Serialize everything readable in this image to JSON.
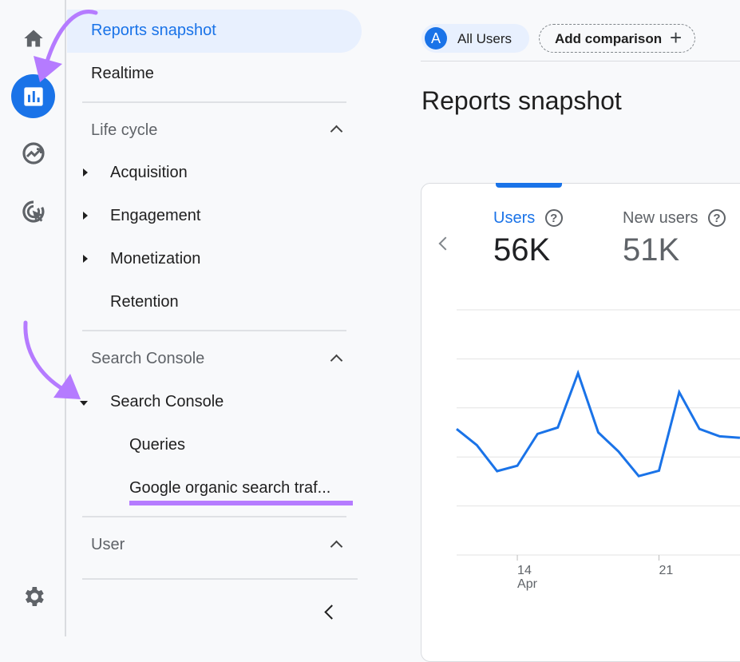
{
  "rail": {
    "icons": [
      "home-icon",
      "reports-icon",
      "explore-icon",
      "advertising-icon",
      "settings-icon"
    ]
  },
  "nav": {
    "reports_snapshot": "Reports snapshot",
    "realtime": "Realtime",
    "lifecycle": {
      "title": "Life cycle",
      "items": [
        "Acquisition",
        "Engagement",
        "Monetization",
        "Retention"
      ]
    },
    "search_console": {
      "title": "Search Console",
      "group": "Search Console",
      "items": [
        "Queries",
        "Google organic search traf..."
      ]
    },
    "user": {
      "title": "User"
    }
  },
  "header": {
    "avatar_letter": "A",
    "segment": "All Users",
    "add_comparison": "Add comparison"
  },
  "page_title": "Reports snapshot",
  "metrics": [
    {
      "label": "Users",
      "value": "56K",
      "active": true
    },
    {
      "label": "New users",
      "value": "51K",
      "active": false
    }
  ],
  "colors": {
    "accent": "#1a73e8",
    "annotation": "#b57bff",
    "active_bg": "#e8f0fe"
  },
  "chart_data": {
    "type": "line",
    "x": [
      "Apr 11",
      "Apr 12",
      "Apr 13",
      "Apr 14",
      "Apr 15",
      "Apr 16",
      "Apr 17",
      "Apr 18",
      "Apr 19",
      "Apr 20",
      "Apr 21",
      "Apr 22",
      "Apr 23",
      "Apr 24",
      "Apr 25"
    ],
    "series": [
      {
        "values": [
          2.57,
          2.24,
          1.71,
          1.82,
          2.47,
          2.6,
          3.71,
          2.5,
          2.11,
          1.61,
          1.72,
          3.32,
          2.57,
          2.42,
          2.39
        ]
      }
    ],
    "tick_labels": [
      {
        "x": "Apr 14",
        "label": "14",
        "sublabel": "Apr"
      },
      {
        "x": "Apr 21",
        "label": "21"
      }
    ],
    "ylim": [
      0,
      5
    ],
    "grid": true,
    "color": "#1a73e8"
  }
}
